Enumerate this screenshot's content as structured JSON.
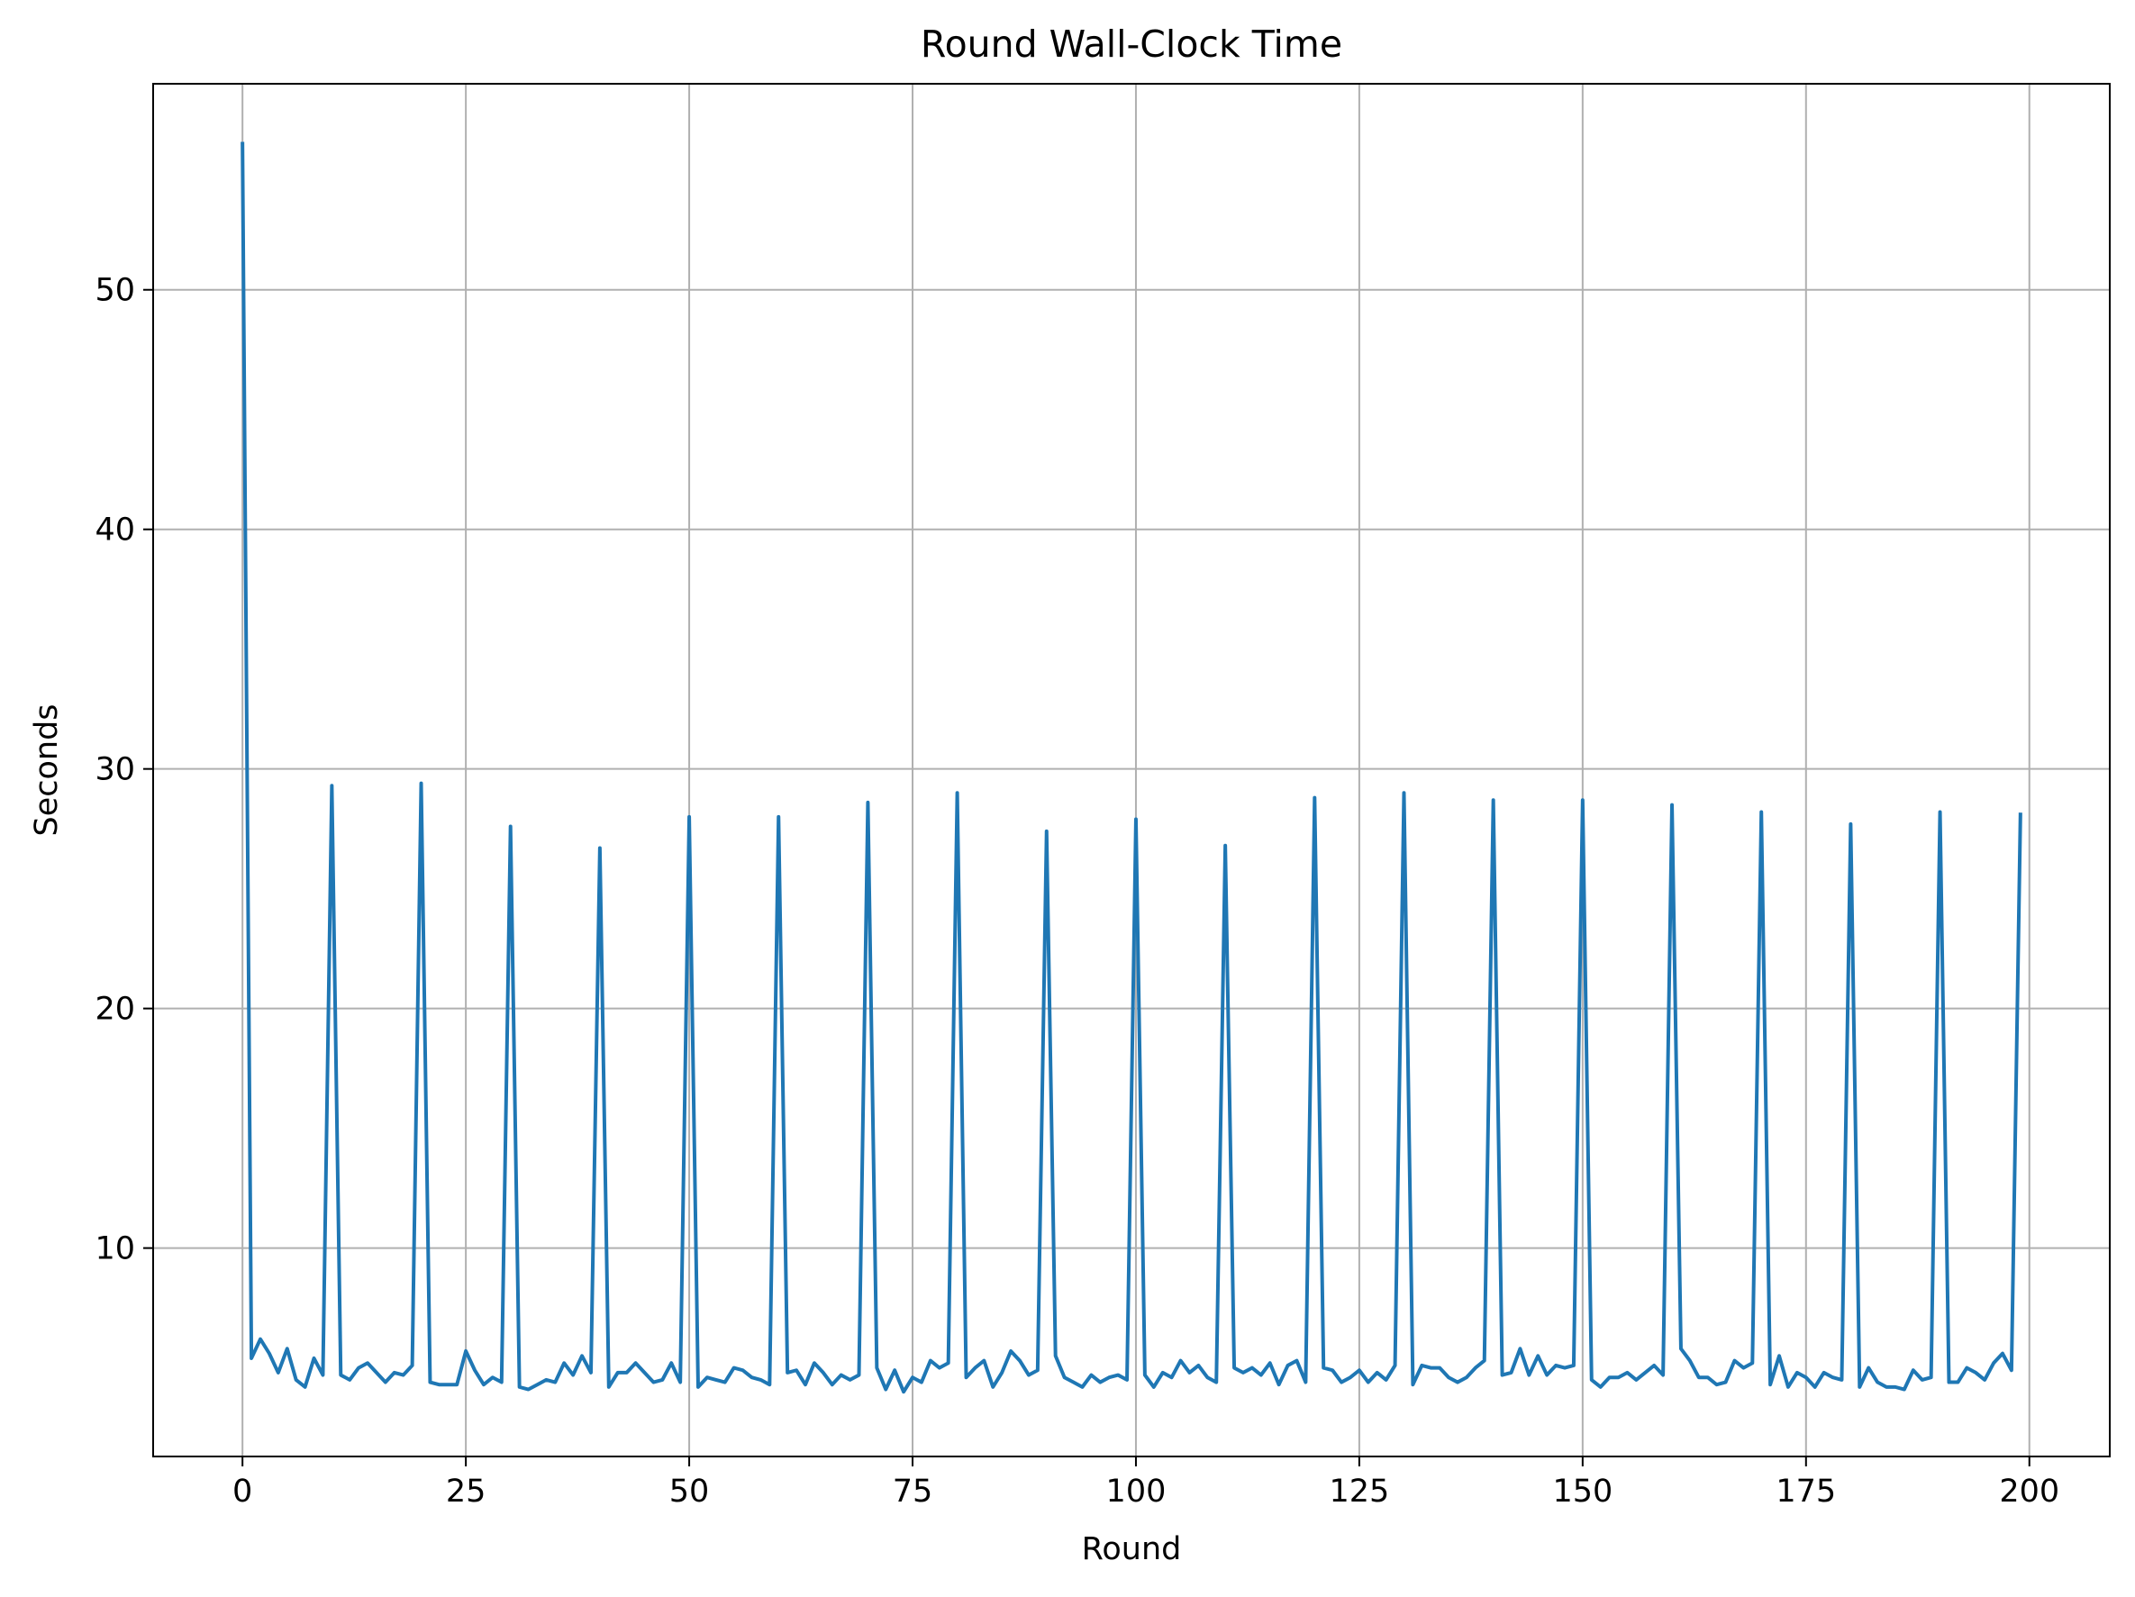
{
  "chart_data": {
    "type": "line",
    "title": "Round Wall-Clock Time",
    "xlabel": "Round",
    "ylabel": "Seconds",
    "xlim": [
      -10,
      209
    ],
    "ylim": [
      1.3,
      58.6
    ],
    "xticks": [
      0,
      25,
      50,
      75,
      100,
      125,
      150,
      175,
      200
    ],
    "yticks": [
      10,
      20,
      30,
      40,
      50
    ],
    "grid": true,
    "colors": {
      "line": "#1f77b4",
      "grid": "#b0b0b0",
      "axes": "#000000"
    },
    "series": [
      {
        "values": [
          56.1,
          5.4,
          6.2,
          5.6,
          4.8,
          5.8,
          4.5,
          4.2,
          5.4,
          4.7,
          29.3,
          4.7,
          4.5,
          5.0,
          5.2,
          4.8,
          4.4,
          4.8,
          4.7,
          5.1,
          29.4,
          4.4,
          4.3,
          4.3,
          4.3,
          5.7,
          4.9,
          4.3,
          4.6,
          4.4,
          27.6,
          4.2,
          4.1,
          4.3,
          4.5,
          4.4,
          5.2,
          4.7,
          5.5,
          4.8,
          26.7,
          4.2,
          4.8,
          4.8,
          5.2,
          4.8,
          4.4,
          4.5,
          5.2,
          4.4,
          28.0,
          4.2,
          4.6,
          4.5,
          4.4,
          5.0,
          4.9,
          4.6,
          4.5,
          4.3,
          28.0,
          4.8,
          4.9,
          4.3,
          5.2,
          4.8,
          4.3,
          4.7,
          4.5,
          4.7,
          28.6,
          5.0,
          4.1,
          4.9,
          4.0,
          4.6,
          4.4,
          5.3,
          5.0,
          5.2,
          29.0,
          4.6,
          5.0,
          5.3,
          4.2,
          4.8,
          5.7,
          5.3,
          4.7,
          4.9,
          27.4,
          5.5,
          4.6,
          4.4,
          4.2,
          4.7,
          4.4,
          4.6,
          4.7,
          4.5,
          27.9,
          4.7,
          4.2,
          4.8,
          4.6,
          5.3,
          4.8,
          5.1,
          4.6,
          4.4,
          26.8,
          5.0,
          4.8,
          5.0,
          4.7,
          5.2,
          4.3,
          5.1,
          5.3,
          4.4,
          28.8,
          5.0,
          4.9,
          4.4,
          4.6,
          4.9,
          4.4,
          4.8,
          4.5,
          5.1,
          29.0,
          4.3,
          5.1,
          5.0,
          5.0,
          4.6,
          4.4,
          4.6,
          5.0,
          5.3,
          28.7,
          4.7,
          4.8,
          5.8,
          4.7,
          5.5,
          4.7,
          5.1,
          5.0,
          5.1,
          28.7,
          4.5,
          4.2,
          4.6,
          4.6,
          4.8,
          4.5,
          4.8,
          5.1,
          4.7,
          28.5,
          5.8,
          5.3,
          4.6,
          4.6,
          4.3,
          4.4,
          5.3,
          5.0,
          5.2,
          28.2,
          4.3,
          5.5,
          4.2,
          4.8,
          4.6,
          4.2,
          4.8,
          4.6,
          4.5,
          27.7,
          4.2,
          5.0,
          4.4,
          4.2,
          4.2,
          4.1,
          4.9,
          4.5,
          4.6,
          28.2,
          4.4,
          4.4,
          5.0,
          4.8,
          4.5,
          5.2,
          5.6,
          4.9,
          28.1
        ]
      }
    ]
  }
}
